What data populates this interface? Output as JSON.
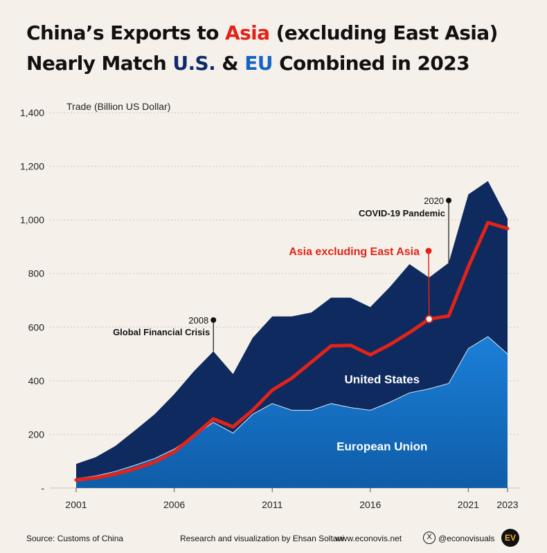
{
  "title": {
    "line1_a": "China’s Exports to ",
    "line1_asia": "Asia",
    "line1_b": " (excluding East Asia)",
    "line2_a": "Nearly Match ",
    "line2_us": "U.S.",
    "line2_b": " & ",
    "line2_eu": "EU",
    "line2_c": " Combined in 2023"
  },
  "footer": {
    "source": "Source: Customs of China",
    "credit": "Research and visualization by Ehsan Soltani",
    "website": "www.econovis.net",
    "handle": "@econovisuals",
    "logo_text": "EV"
  },
  "colors": {
    "background": "#f5f1ea",
    "us": "#0e2a5e",
    "eu": "#1672c4",
    "asia_line": "#e2231a"
  },
  "chart_data": {
    "type": "area",
    "stacked": true,
    "ylabel": "Trade (Billion US Dollar)",
    "xlabel": "",
    "ylim": [
      0,
      1400
    ],
    "yticks": [
      0,
      200,
      400,
      600,
      800,
      1000,
      1200,
      1400
    ],
    "ytick_labels": [
      "-",
      "200",
      "400",
      "600",
      "800",
      "1,000",
      "1,200",
      "1,400"
    ],
    "xticks": [
      2001,
      2006,
      2011,
      2016,
      2021,
      2023
    ],
    "grid": true,
    "x": [
      2001,
      2002,
      2003,
      2004,
      2005,
      2006,
      2007,
      2008,
      2009,
      2010,
      2011,
      2012,
      2013,
      2014,
      2015,
      2016,
      2017,
      2018,
      2019,
      2020,
      2021,
      2022,
      2023
    ],
    "series": [
      {
        "name": "European Union",
        "kind": "area",
        "values": [
          35,
          45,
          62,
          85,
          110,
          145,
          195,
          245,
          205,
          275,
          315,
          290,
          290,
          315,
          300,
          290,
          320,
          355,
          370,
          390,
          520,
          565,
          500
        ]
      },
      {
        "name": "United States",
        "kind": "area",
        "values": [
          55,
          70,
          95,
          130,
          165,
          205,
          240,
          265,
          220,
          285,
          325,
          350,
          365,
          395,
          410,
          385,
          430,
          480,
          415,
          450,
          575,
          580,
          505
        ]
      },
      {
        "name": "Asia excluding East Asia",
        "kind": "line",
        "values": [
          30,
          38,
          52,
          72,
          97,
          135,
          195,
          258,
          228,
          290,
          365,
          410,
          470,
          530,
          532,
          497,
          535,
          580,
          630,
          642,
          825,
          990,
          968
        ]
      }
    ],
    "annotations": [
      {
        "year": "2008",
        "text": "Global Financial Crisis",
        "x": 2008
      },
      {
        "year": "2020",
        "text": "COVID-19 Pandemic",
        "x": 2020
      }
    ]
  }
}
